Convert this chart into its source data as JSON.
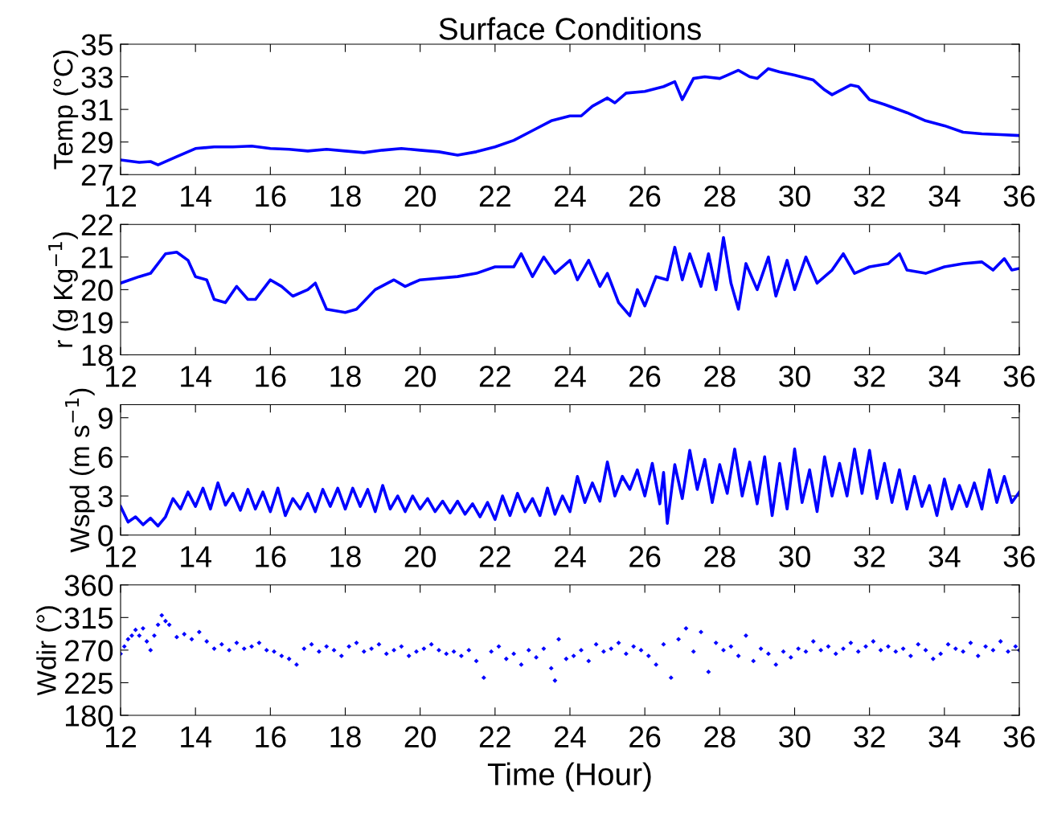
{
  "chart_data": [
    {
      "type": "line",
      "title": "Surface Conditions",
      "ylabel": "Temp (°C)",
      "xlim": [
        12,
        36
      ],
      "xticks": [
        12,
        14,
        16,
        18,
        20,
        22,
        24,
        26,
        28,
        30,
        32,
        34,
        36
      ],
      "ylim": [
        27,
        35
      ],
      "yticks": [
        27,
        29,
        31,
        33,
        35
      ],
      "grid": false,
      "line_style": "solid",
      "series": [
        {
          "color": "#0000ff",
          "x": [
            12,
            12.5,
            12.8,
            13.0,
            13.5,
            14,
            14.5,
            15,
            15.5,
            16,
            16.5,
            17,
            17.5,
            18,
            18.5,
            19,
            19.5,
            20,
            20.5,
            21,
            21.5,
            22,
            22.5,
            23,
            23.5,
            24,
            24.3,
            24.6,
            25,
            25.2,
            25.5,
            26,
            26.5,
            26.8,
            27,
            27.3,
            27.6,
            28,
            28.2,
            28.5,
            28.8,
            29,
            29.3,
            29.6,
            30,
            30.5,
            30.8,
            31,
            31.5,
            31.7,
            32,
            32.4,
            33,
            33.5,
            34,
            34.5,
            35,
            35.5,
            36
          ],
          "values": [
            27.9,
            27.75,
            27.8,
            27.6,
            28.1,
            28.6,
            28.7,
            28.7,
            28.75,
            28.6,
            28.55,
            28.45,
            28.55,
            28.45,
            28.35,
            28.5,
            28.6,
            28.5,
            28.4,
            28.2,
            28.4,
            28.7,
            29.1,
            29.7,
            30.3,
            30.6,
            30.6,
            31.2,
            31.7,
            31.4,
            32.0,
            32.1,
            32.4,
            32.7,
            31.6,
            32.9,
            33.0,
            32.9,
            33.1,
            33.4,
            33.0,
            32.9,
            33.5,
            33.3,
            33.1,
            32.8,
            32.2,
            31.9,
            32.5,
            32.4,
            31.6,
            31.3,
            30.8,
            30.3,
            30.0,
            29.6,
            29.5,
            29.45,
            29.4
          ]
        }
      ]
    },
    {
      "type": "line",
      "ylabel": "r (g Kg$^{−1}$)",
      "xlim": [
        12,
        36
      ],
      "xticks": [
        12,
        14,
        16,
        18,
        20,
        22,
        24,
        26,
        28,
        30,
        32,
        34,
        36
      ],
      "ylim": [
        18,
        22
      ],
      "yticks": [
        18,
        19,
        20,
        21,
        22
      ],
      "grid": false,
      "line_style": "solid",
      "series": [
        {
          "color": "#0000ff",
          "x": [
            12,
            12.5,
            12.8,
            13.2,
            13.5,
            13.8,
            14,
            14.3,
            14.5,
            14.8,
            15.1,
            15.4,
            15.6,
            16,
            16.3,
            16.6,
            17,
            17.2,
            17.5,
            18,
            18.3,
            18.8,
            19.3,
            19.6,
            20,
            21,
            21.5,
            22,
            22.5,
            22.7,
            23,
            23.3,
            23.6,
            24,
            24.2,
            24.5,
            24.8,
            25,
            25.3,
            25.6,
            25.8,
            26,
            26.3,
            26.6,
            26.8,
            27,
            27.2,
            27.5,
            27.7,
            27.9,
            28.1,
            28.3,
            28.5,
            28.7,
            29,
            29.3,
            29.5,
            29.8,
            30,
            30.3,
            30.6,
            31,
            31.3,
            31.6,
            32,
            32.5,
            32.8,
            33,
            33.5,
            34,
            34.5,
            35,
            35.3,
            35.6,
            35.8,
            36
          ],
          "values": [
            20.2,
            20.4,
            20.5,
            21.1,
            21.15,
            20.9,
            20.4,
            20.3,
            19.7,
            19.6,
            20.1,
            19.7,
            19.7,
            20.3,
            20.1,
            19.8,
            20.0,
            20.2,
            19.4,
            19.3,
            19.4,
            20.0,
            20.3,
            20.1,
            20.3,
            20.4,
            20.5,
            20.7,
            20.7,
            21.1,
            20.4,
            21.0,
            20.5,
            20.9,
            20.3,
            20.9,
            20.1,
            20.5,
            19.6,
            19.2,
            20.0,
            19.5,
            20.4,
            20.3,
            21.3,
            20.3,
            21.1,
            20.1,
            21.1,
            20.0,
            21.6,
            20.2,
            19.4,
            20.8,
            20.0,
            21.0,
            19.8,
            20.9,
            20.0,
            21.0,
            20.2,
            20.6,
            21.1,
            20.5,
            20.7,
            20.8,
            21.1,
            20.6,
            20.5,
            20.7,
            20.8,
            20.85,
            20.6,
            20.95,
            20.6,
            20.65
          ]
        }
      ]
    },
    {
      "type": "line",
      "ylabel": "Wspd (m s$^{−1}$)",
      "xlim": [
        12,
        36
      ],
      "xticks": [
        12,
        14,
        16,
        18,
        20,
        22,
        24,
        26,
        28,
        30,
        32,
        34,
        36
      ],
      "ylim": [
        0,
        10
      ],
      "yticks": [
        0,
        3,
        6,
        9
      ],
      "grid": false,
      "line_style": "solid",
      "series": [
        {
          "color": "#0000ff",
          "x": [
            12,
            12.2,
            12.4,
            12.6,
            12.8,
            13,
            13.2,
            13.4,
            13.6,
            13.8,
            14,
            14.2,
            14.4,
            14.6,
            14.8,
            15,
            15.2,
            15.4,
            15.6,
            15.8,
            16,
            16.2,
            16.4,
            16.6,
            16.8,
            17,
            17.2,
            17.4,
            17.6,
            17.8,
            18,
            18.2,
            18.4,
            18.6,
            18.8,
            19,
            19.2,
            19.4,
            19.6,
            19.8,
            20,
            20.2,
            20.4,
            20.6,
            20.8,
            21,
            21.2,
            21.4,
            21.6,
            21.8,
            22,
            22.2,
            22.4,
            22.6,
            22.8,
            23,
            23.2,
            23.4,
            23.6,
            23.8,
            24,
            24.2,
            24.4,
            24.6,
            24.8,
            25,
            25.2,
            25.4,
            25.6,
            25.8,
            26,
            26.2,
            26.4,
            26.5,
            26.6,
            26.8,
            27,
            27.2,
            27.4,
            27.6,
            27.8,
            28,
            28.2,
            28.4,
            28.6,
            28.8,
            29,
            29.2,
            29.4,
            29.6,
            29.8,
            30,
            30.2,
            30.4,
            30.6,
            30.8,
            31,
            31.2,
            31.4,
            31.6,
            31.8,
            32,
            32.2,
            32.4,
            32.6,
            32.8,
            33,
            33.2,
            33.4,
            33.6,
            33.8,
            34,
            34.2,
            34.4,
            34.6,
            34.8,
            35,
            35.2,
            35.4,
            35.6,
            35.8,
            36
          ],
          "values": [
            2.2,
            1.0,
            1.4,
            0.8,
            1.3,
            0.7,
            1.4,
            2.8,
            2.0,
            3.3,
            2.2,
            3.6,
            2.0,
            4.0,
            2.3,
            3.2,
            1.9,
            3.5,
            2.0,
            3.3,
            1.8,
            3.6,
            1.5,
            2.8,
            2.0,
            3.2,
            1.8,
            3.5,
            2.2,
            3.6,
            2.0,
            3.6,
            2.2,
            3.5,
            1.8,
            3.8,
            2.0,
            3.0,
            1.8,
            3.0,
            2.0,
            2.8,
            1.8,
            2.6,
            1.7,
            2.6,
            1.6,
            2.4,
            1.4,
            2.5,
            1.2,
            3.0,
            1.5,
            3.2,
            1.8,
            2.8,
            1.5,
            3.6,
            1.6,
            3.0,
            1.8,
            4.5,
            2.5,
            4.0,
            2.6,
            5.6,
            3.0,
            4.5,
            3.5,
            5.0,
            3.0,
            5.5,
            2.4,
            4.8,
            0.9,
            5.4,
            2.8,
            6.5,
            3.5,
            5.8,
            2.5,
            5.4,
            3.2,
            6.6,
            3.0,
            5.6,
            2.4,
            6.0,
            1.5,
            5.5,
            2.0,
            6.6,
            2.5,
            5.0,
            1.8,
            6.0,
            3.0,
            5.5,
            3.0,
            6.6,
            3.2,
            6.5,
            2.8,
            5.5,
            2.5,
            5.0,
            2.0,
            4.5,
            2.2,
            3.8,
            1.5,
            4.3,
            2.0,
            3.8,
            2.2,
            4.0,
            2.0,
            5.0,
            2.5,
            4.5,
            2.5,
            3.3
          ]
        }
      ]
    },
    {
      "type": "scatter",
      "ylabel": "Wdir (°)",
      "xlabel": "Time (Hour)",
      "xlim": [
        12,
        36
      ],
      "xticks": [
        12,
        14,
        16,
        18,
        20,
        22,
        24,
        26,
        28,
        30,
        32,
        34,
        36
      ],
      "ylim": [
        180,
        360
      ],
      "yticks": [
        180,
        225,
        270,
        315,
        360
      ],
      "grid": false,
      "marker": "diamond",
      "series": [
        {
          "color": "#0000ff",
          "x": [
            12,
            12.1,
            12.2,
            12.3,
            12.4,
            12.5,
            12.6,
            12.7,
            12.8,
            12.9,
            13.0,
            13.1,
            13.2,
            13.3,
            13.5,
            13.7,
            13.9,
            14.1,
            14.3,
            14.5,
            14.7,
            14.9,
            15.1,
            15.3,
            15.5,
            15.7,
            15.9,
            16.1,
            16.3,
            16.5,
            16.7,
            16.9,
            17.1,
            17.3,
            17.5,
            17.7,
            17.9,
            18.1,
            18.3,
            18.5,
            18.7,
            18.9,
            19.1,
            19.3,
            19.5,
            19.7,
            19.9,
            20.1,
            20.3,
            20.5,
            20.7,
            20.9,
            21.1,
            21.3,
            21.5,
            21.7,
            21.9,
            22.1,
            22.3,
            22.5,
            22.7,
            22.9,
            23.1,
            23.3,
            23.5,
            23.6,
            23.7,
            23.9,
            24.1,
            24.3,
            24.5,
            24.7,
            24.9,
            25.1,
            25.3,
            25.5,
            25.7,
            25.9,
            26.1,
            26.3,
            26.5,
            26.7,
            26.9,
            27.1,
            27.3,
            27.5,
            27.7,
            27.9,
            28.1,
            28.3,
            28.5,
            28.7,
            28.9,
            29.1,
            29.3,
            29.5,
            29.7,
            29.9,
            30.1,
            30.3,
            30.5,
            30.7,
            30.9,
            31.1,
            31.3,
            31.5,
            31.7,
            31.9,
            32.1,
            32.3,
            32.5,
            32.7,
            32.9,
            33.1,
            33.3,
            33.5,
            33.7,
            33.9,
            34.1,
            34.3,
            34.5,
            34.7,
            34.9,
            35.1,
            35.3,
            35.5,
            35.7,
            35.9,
            36
          ],
          "values": [
            265,
            275,
            285,
            290,
            298,
            290,
            300,
            282,
            270,
            290,
            305,
            318,
            310,
            305,
            288,
            292,
            285,
            295,
            282,
            272,
            278,
            270,
            280,
            272,
            275,
            280,
            270,
            268,
            262,
            258,
            250,
            272,
            278,
            268,
            275,
            270,
            262,
            275,
            280,
            268,
            272,
            278,
            265,
            270,
            275,
            262,
            268,
            272,
            278,
            270,
            265,
            268,
            262,
            270,
            255,
            232,
            268,
            275,
            258,
            265,
            250,
            270,
            260,
            272,
            245,
            228,
            285,
            258,
            262,
            270,
            255,
            278,
            268,
            272,
            280,
            265,
            275,
            270,
            262,
            250,
            278,
            232,
            285,
            300,
            268,
            295,
            240,
            280,
            270,
            275,
            262,
            290,
            255,
            272,
            265,
            250,
            268,
            260,
            272,
            268,
            282,
            270,
            275,
            265,
            272,
            280,
            268,
            275,
            282,
            270,
            275,
            268,
            272,
            262,
            278,
            270,
            258,
            265,
            278,
            272,
            268,
            280,
            262,
            275,
            270,
            282,
            268,
            275,
            270
          ]
        }
      ]
    }
  ]
}
